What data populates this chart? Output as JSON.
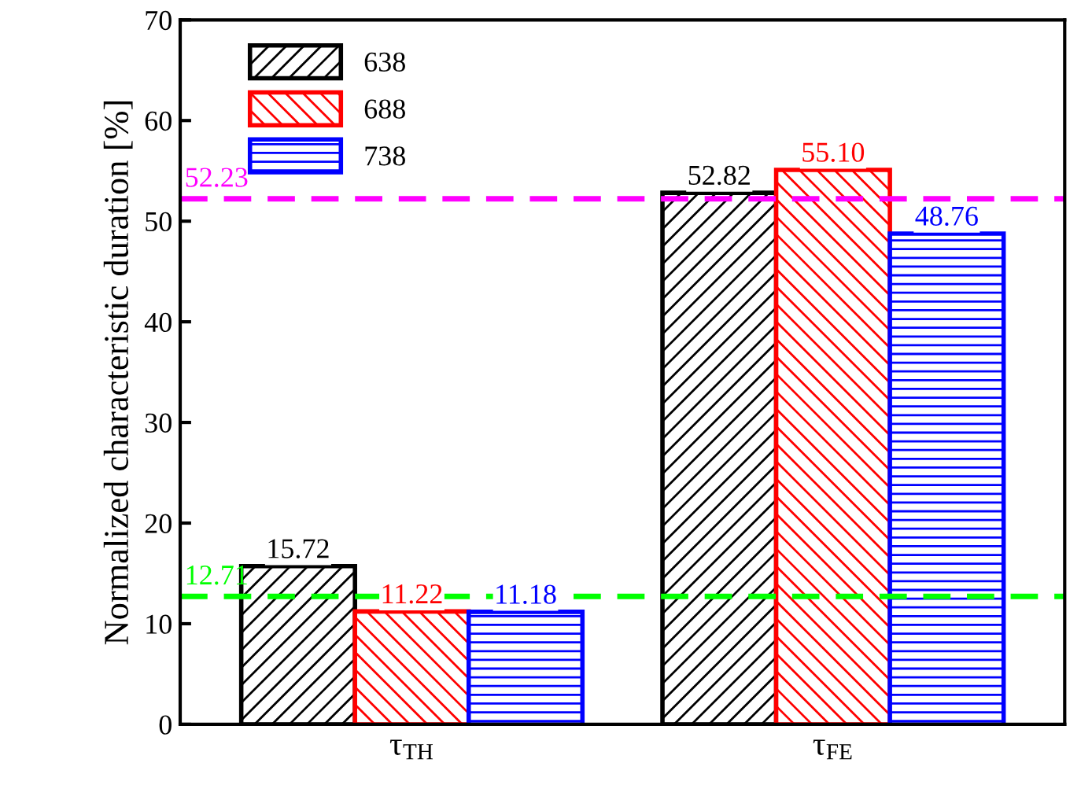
{
  "chart_data": {
    "type": "bar",
    "ylabel": "Normalized characteristic duration [%]",
    "categories": [
      "τ$_{TH}$",
      "τ$_{FE}$"
    ],
    "series": [
      {
        "name": "638",
        "color": "#000000",
        "values": [
          15.72,
          52.82
        ],
        "value_labels": [
          "15.72",
          "52.82"
        ]
      },
      {
        "name": "688",
        "color": "#ff0000",
        "values": [
          11.22,
          55.1
        ],
        "value_labels": [
          "11.22",
          "55.10"
        ]
      },
      {
        "name": "738",
        "color": "#0000ff",
        "values": [
          11.18,
          48.76
        ],
        "value_labels": [
          "11.18",
          "48.76"
        ]
      }
    ],
    "ylim": [
      0,
      70
    ],
    "yticks": [
      0,
      10,
      20,
      30,
      40,
      50,
      60,
      70
    ],
    "grid": false,
    "legend": "top left",
    "ref_lines": [
      {
        "axis": "y",
        "value": 12.71,
        "label": "12.71",
        "color": "#00ff00",
        "line_style": "dashed"
      },
      {
        "axis": "y",
        "value": 52.23,
        "label": "52.23",
        "color": "#ff00ff",
        "line_style": "dashed"
      }
    ]
  }
}
